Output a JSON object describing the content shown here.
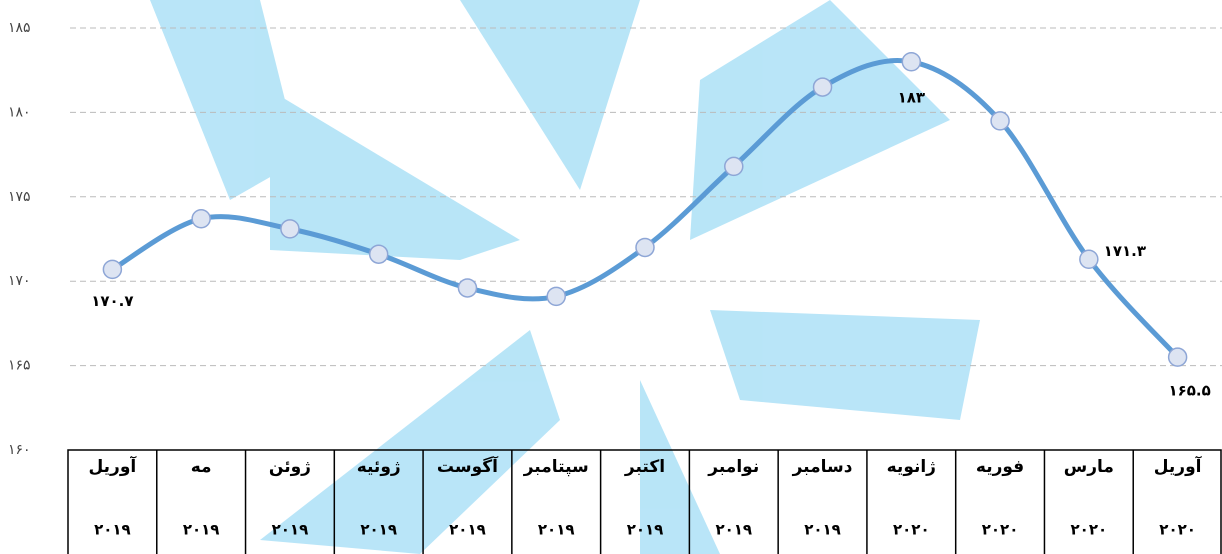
{
  "chart_data": {
    "type": "line",
    "categories": [
      "آوریل",
      "مه",
      "ژوئن",
      "ژوئیه",
      "آگوست",
      "سپتامبر",
      "اکتبر",
      "نوامبر",
      "دسامبر",
      "ژانویه",
      "فوریه",
      "مارس",
      "آوریل"
    ],
    "years": [
      "۲۰۱۹",
      "۲۰۱۹",
      "۲۰۱۹",
      "۲۰۱۹",
      "۲۰۱۹",
      "۲۰۱۹",
      "۲۰۱۹",
      "۲۰۱۹",
      "۲۰۱۹",
      "۲۰۲۰",
      "۲۰۲۰",
      "۲۰۲۰",
      "۲۰۲۰"
    ],
    "values": [
      170.7,
      173.7,
      173.1,
      171.6,
      169.6,
      169.1,
      172.0,
      176.8,
      181.5,
      183,
      179.5,
      171.3,
      165.5
    ],
    "value_labels": [
      "۱۷۰.۷",
      null,
      null,
      null,
      null,
      null,
      null,
      null,
      null,
      "۱۸۳",
      null,
      "۱۷۱.۳",
      "۱۶۵.۵"
    ],
    "color": "#5b9bd5",
    "ylim": [
      160,
      185
    ],
    "yticks": [
      {
        "value": 160,
        "label": "۱۶۰"
      },
      {
        "value": 165,
        "label": "۱۶۵"
      },
      {
        "value": 170,
        "label": "۱۷۰"
      },
      {
        "value": 175,
        "label": "۱۷۵"
      },
      {
        "value": 180,
        "label": "۱۸۰"
      },
      {
        "value": 185,
        "label": "۱۸۵"
      }
    ],
    "grid": true
  }
}
